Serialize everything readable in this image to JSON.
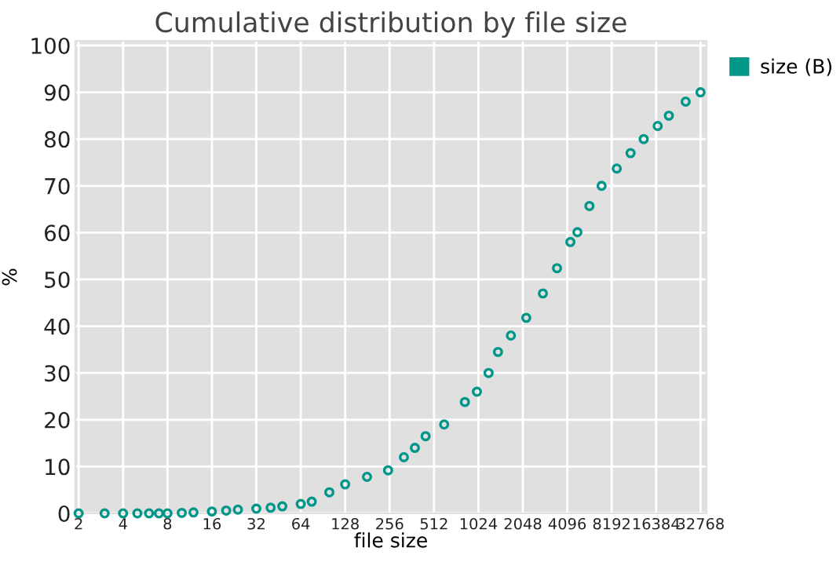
{
  "chart_data": {
    "type": "scatter",
    "title": "Cumulative distribution by file size",
    "xlabel": "file size",
    "ylabel": "%",
    "x": [
      2,
      3,
      4,
      5,
      6,
      7,
      8,
      10,
      12,
      16,
      20,
      24,
      32,
      40,
      48,
      64,
      76,
      100,
      128,
      180,
      250,
      320,
      380,
      449,
      600,
      829,
      1000,
      1200,
      1390,
      1700,
      2160,
      2800,
      3490,
      4300,
      4800,
      5790,
      7000,
      8870,
      11000,
      13500,
      16800,
      20000,
      26000,
      32768
    ],
    "series": [
      {
        "name": "size (B)",
        "color": "#009688",
        "values": [
          0,
          0,
          0,
          0,
          0,
          0,
          0,
          0.1,
          0.2,
          0.4,
          0.6,
          0.8,
          1.0,
          1.2,
          1.5,
          2.0,
          2.5,
          4.5,
          6.2,
          7.8,
          9.2,
          12,
          14,
          16.5,
          19,
          23.8,
          26,
          30,
          34.5,
          38,
          41.8,
          47,
          52.4,
          58,
          60.1,
          65.7,
          70,
          73.7,
          77,
          80,
          82.8,
          85,
          88,
          90
        ]
      }
    ],
    "log": "x",
    "xlim": [
      1.9,
      36000
    ],
    "ylim": [
      0,
      101
    ],
    "xticks": [
      2,
      4,
      8,
      16,
      32,
      64,
      128,
      256,
      512,
      1024,
      2048,
      4096,
      8192,
      16384,
      32768
    ],
    "yticks": [
      0,
      10,
      20,
      30,
      40,
      50,
      60,
      70,
      80,
      90,
      100
    ],
    "grid": true,
    "legend": "right",
    "marker": "circle"
  }
}
